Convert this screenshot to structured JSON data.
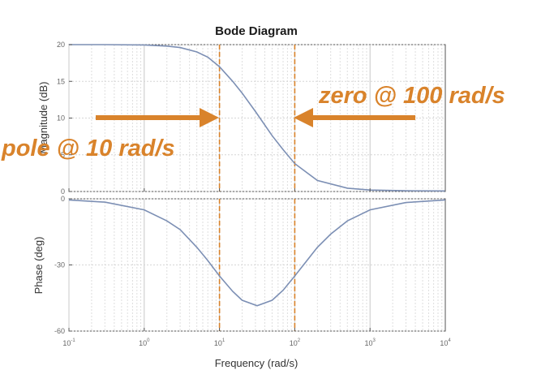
{
  "chart_data": [
    {
      "type": "line",
      "title": "Bode Diagram",
      "xlabel": "Frequency  (rad/s)",
      "ylabel": "Magnitude (dB)",
      "xscale": "log",
      "xlim": [
        0.1,
        10000
      ],
      "ylim": [
        0,
        20
      ],
      "grid": true,
      "x_ticks": [
        {
          "base": "10",
          "exp": "-1"
        },
        {
          "base": "10",
          "exp": "0"
        },
        {
          "base": "10",
          "exp": "1"
        },
        {
          "base": "10",
          "exp": "2"
        },
        {
          "base": "10",
          "exp": "3"
        },
        {
          "base": "10",
          "exp": "4"
        }
      ],
      "y_ticks": [
        "0",
        "5",
        "10",
        "15",
        "20"
      ],
      "series": [
        {
          "color": "#7c8fb4",
          "x": [
            0.1,
            0.3,
            1,
            2,
            3,
            5,
            7,
            10,
            15,
            20,
            30,
            50,
            70,
            100,
            200,
            500,
            1000,
            3000,
            10000
          ],
          "y": [
            20,
            20,
            19.96,
            19.8,
            19.6,
            19.0,
            18.3,
            17.0,
            15.0,
            13.4,
            10.9,
            7.6,
            5.7,
            3.8,
            1.5,
            0.45,
            0.2,
            0.1,
            0.08
          ]
        }
      ],
      "vlines": [
        {
          "x": 10,
          "color": "#d9832b"
        },
        {
          "x": 100,
          "color": "#d9832b"
        }
      ]
    },
    {
      "type": "line",
      "xlabel": "Frequency  (rad/s)",
      "ylabel": "Phase (deg)",
      "xscale": "log",
      "xlim": [
        0.1,
        10000
      ],
      "ylim": [
        -60,
        0
      ],
      "grid": true,
      "x_ticks": [
        {
          "base": "10",
          "exp": "-1"
        },
        {
          "base": "10",
          "exp": "0"
        },
        {
          "base": "10",
          "exp": "1"
        },
        {
          "base": "10",
          "exp": "2"
        },
        {
          "base": "10",
          "exp": "3"
        },
        {
          "base": "10",
          "exp": "4"
        }
      ],
      "y_ticks": [
        "0",
        "-30",
        "-60"
      ],
      "series": [
        {
          "color": "#7c8fb4",
          "x": [
            0.1,
            0.3,
            1,
            2,
            3,
            5,
            7,
            10,
            15,
            20,
            31.6,
            50,
            70,
            100,
            200,
            300,
            500,
            1000,
            3000,
            10000
          ],
          "y": [
            -0.5,
            -1.5,
            -5,
            -10,
            -14,
            -22,
            -28,
            -35,
            -42,
            -46,
            -48.5,
            -46,
            -41.5,
            -35,
            -22,
            -16,
            -10,
            -5,
            -1.7,
            -0.5
          ]
        }
      ],
      "vlines": [
        {
          "x": 10,
          "color": "#d9832b"
        },
        {
          "x": 100,
          "color": "#d9832b"
        }
      ]
    }
  ],
  "annotations": {
    "pole_label": "pole @ 10 rad/s",
    "zero_label": "zero @ 100 rad/s",
    "color": "#d9832b"
  }
}
